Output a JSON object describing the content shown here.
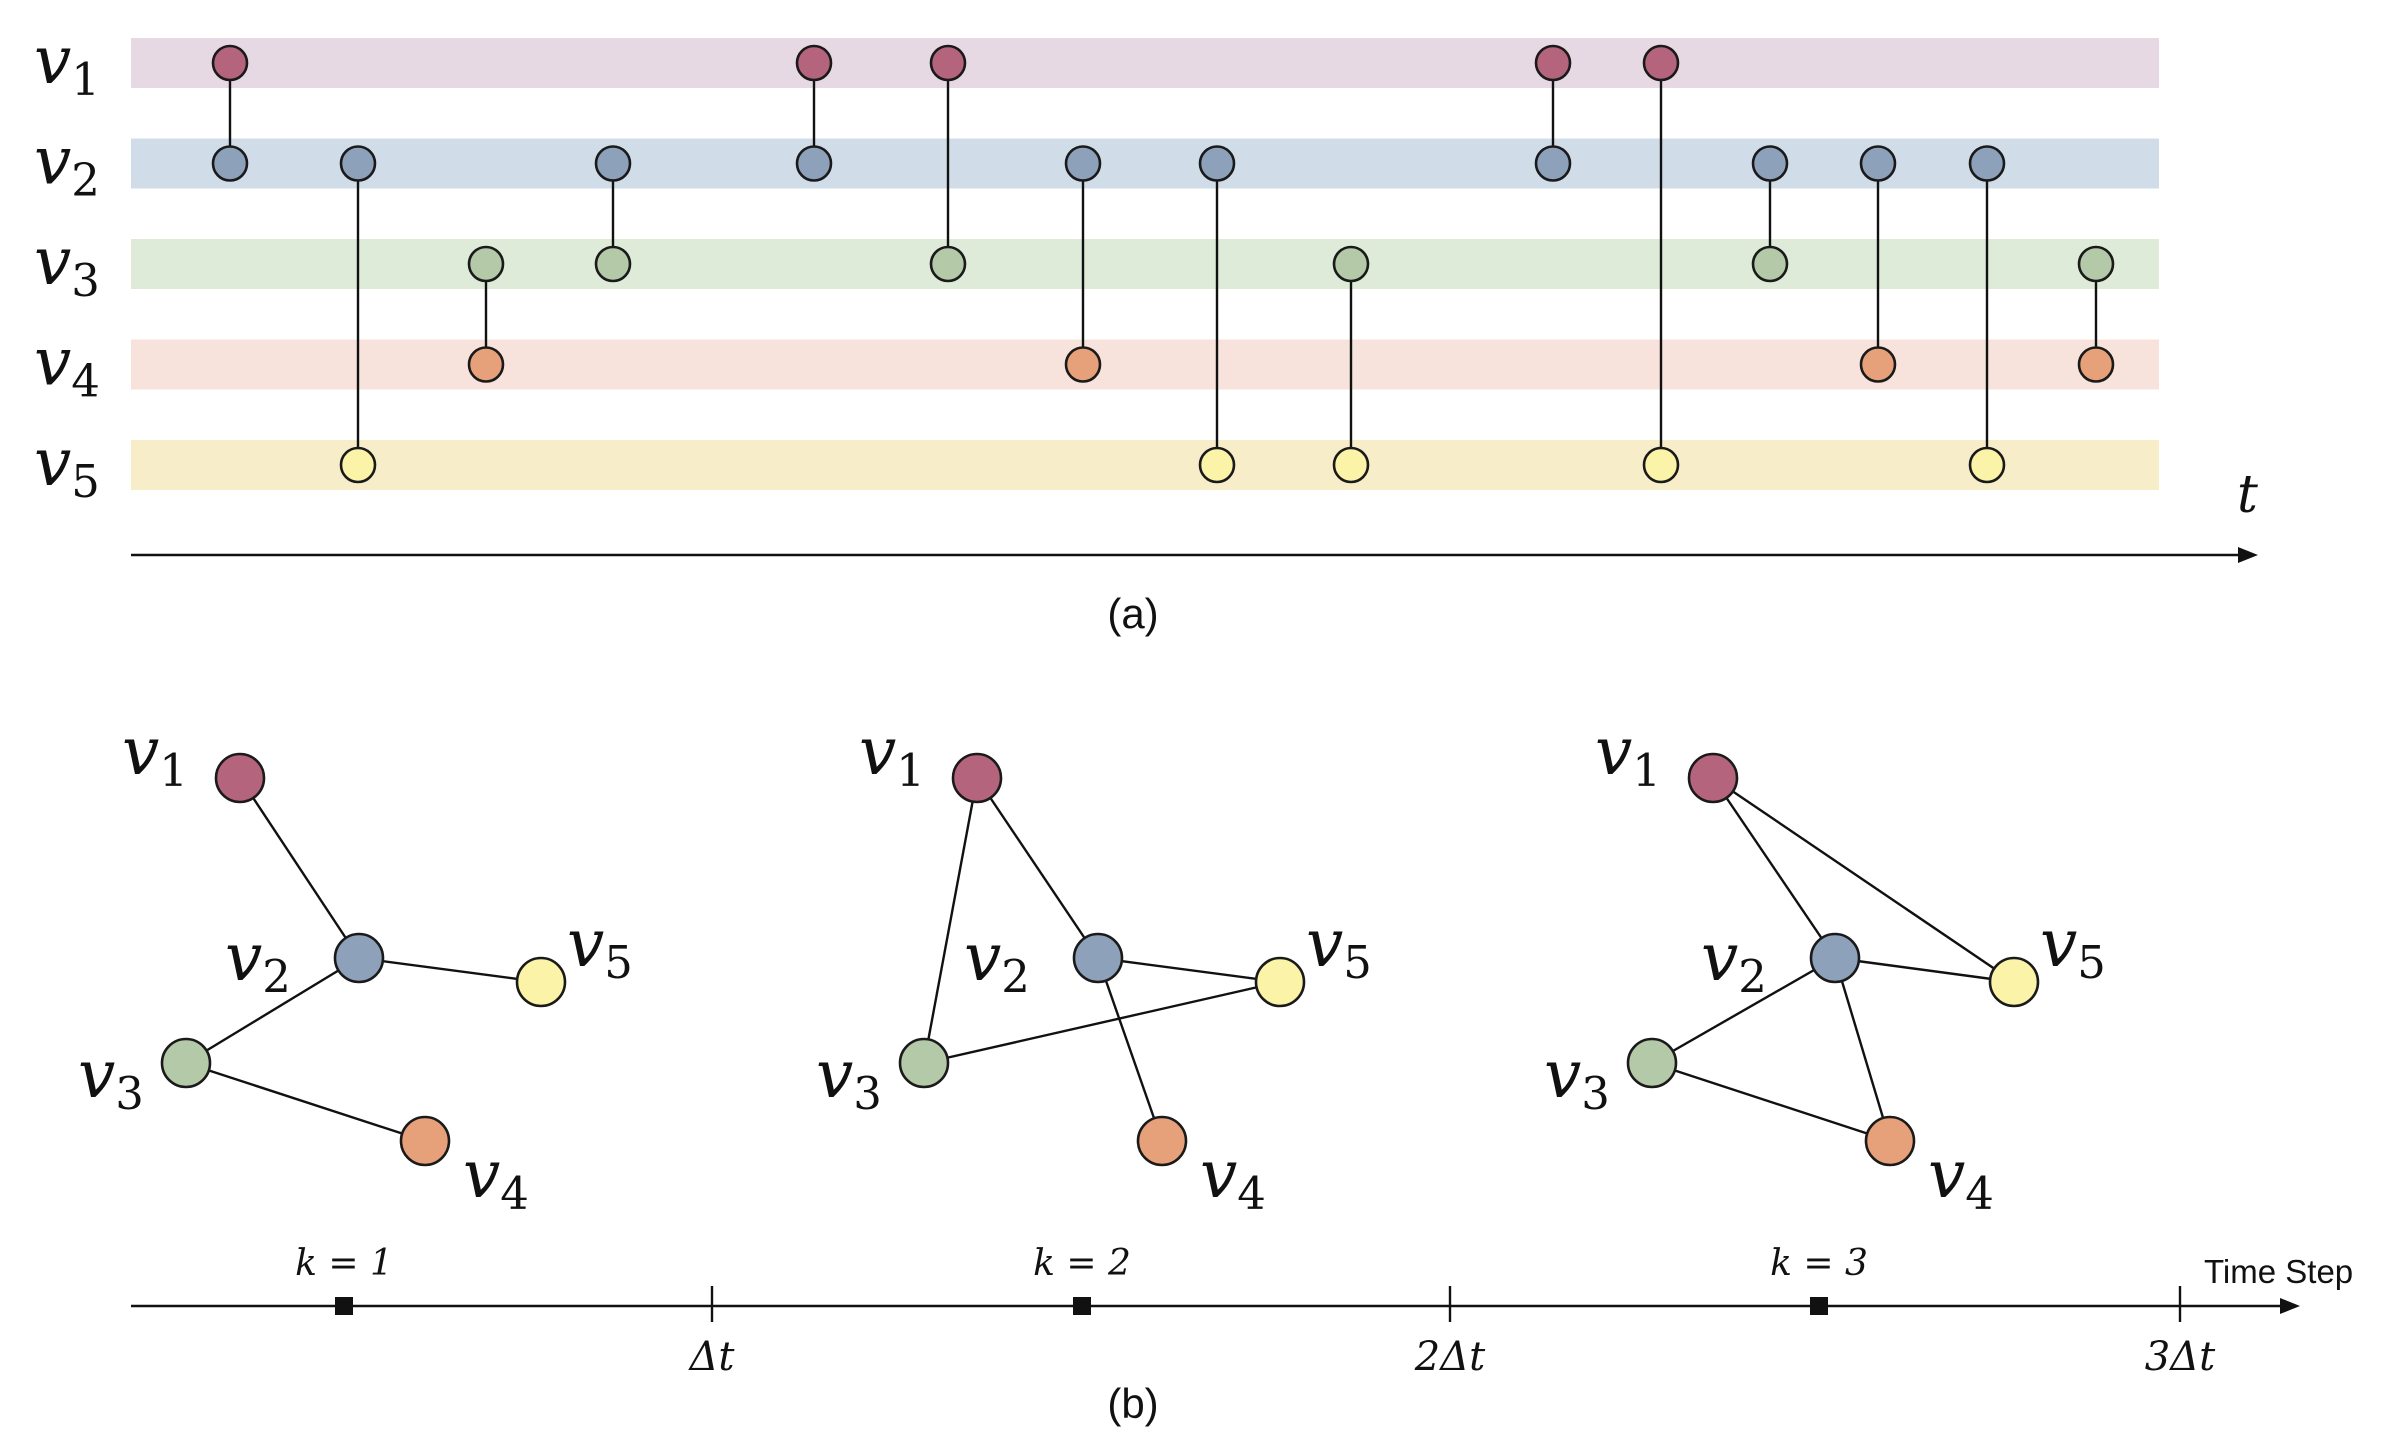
{
  "colors": {
    "v1": "#b5647e",
    "v2": "#8da1bb",
    "v3": "#b4c9a7",
    "v4": "#e6a07a",
    "v5": "#fbf3a8",
    "band_v1": "#e6d9e3",
    "band_v2": "#d0dde9",
    "band_v3": "#ddebd8",
    "band_v4": "#f7e3db",
    "band_v5": "#f7edc9"
  },
  "panel_a": {
    "nodes": [
      {
        "id": "v1",
        "base": "v",
        "sub": "1"
      },
      {
        "id": "v2",
        "base": "v",
        "sub": "2"
      },
      {
        "id": "v3",
        "base": "v",
        "sub": "3"
      },
      {
        "id": "v4",
        "base": "v",
        "sub": "4"
      },
      {
        "id": "v5",
        "base": "v",
        "sub": "5"
      }
    ],
    "interactions": [
      {
        "t": 1,
        "a": "v1",
        "b": "v2"
      },
      {
        "t": 2,
        "a": "v2",
        "b": "v5"
      },
      {
        "t": 3,
        "a": "v3",
        "b": "v4"
      },
      {
        "t": 4,
        "a": "v2",
        "b": "v3"
      },
      {
        "t": 5,
        "a": "v1",
        "b": "v2"
      },
      {
        "t": 6,
        "a": "v1",
        "b": "v3"
      },
      {
        "t": 7,
        "a": "v2",
        "b": "v4"
      },
      {
        "t": 8,
        "a": "v2",
        "b": "v5"
      },
      {
        "t": 9,
        "a": "v3",
        "b": "v5"
      },
      {
        "t": 10,
        "a": "v1",
        "b": "v2"
      },
      {
        "t": 11,
        "a": "v1",
        "b": "v5"
      },
      {
        "t": 12,
        "a": "v2",
        "b": "v3"
      },
      {
        "t": 13,
        "a": "v2",
        "b": "v4"
      },
      {
        "t": 14,
        "a": "v2",
        "b": "v5"
      },
      {
        "t": 15,
        "a": "v3",
        "b": "v4"
      }
    ],
    "axis_label": "t",
    "caption": "(a)"
  },
  "panel_b": {
    "snapshots": [
      {
        "k_label": "k = 1",
        "edges": [
          [
            "v1",
            "v2"
          ],
          [
            "v2",
            "v5"
          ],
          [
            "v2",
            "v3"
          ],
          [
            "v3",
            "v4"
          ]
        ]
      },
      {
        "k_label": "k = 2",
        "edges": [
          [
            "v1",
            "v2"
          ],
          [
            "v1",
            "v3"
          ],
          [
            "v2",
            "v5"
          ],
          [
            "v2",
            "v4"
          ],
          [
            "v3",
            "v5"
          ]
        ]
      },
      {
        "k_label": "k = 3",
        "edges": [
          [
            "v1",
            "v2"
          ],
          [
            "v1",
            "v5"
          ],
          [
            "v2",
            "v5"
          ],
          [
            "v2",
            "v3"
          ],
          [
            "v2",
            "v4"
          ],
          [
            "v3",
            "v4"
          ]
        ]
      }
    ],
    "ticks": [
      "Δt",
      "2Δt",
      "3Δt"
    ],
    "axis_label": "Time Step",
    "caption": "(b)"
  }
}
